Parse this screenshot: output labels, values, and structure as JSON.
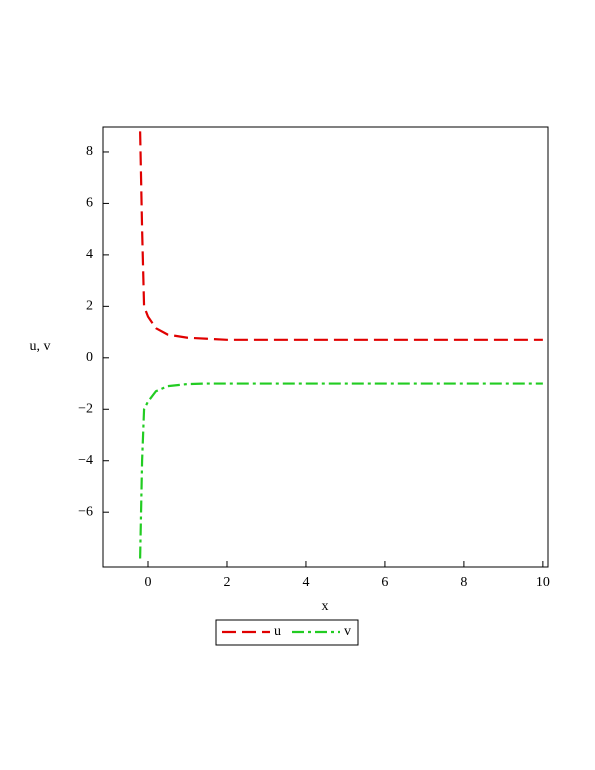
{
  "chart_data": {
    "type": "line",
    "x_label": "x",
    "y_label": "u, v",
    "x": [
      -0.2,
      -0.15,
      -0.1,
      0,
      0.2,
      0.5,
      1,
      1.5,
      2,
      4,
      6,
      8,
      10
    ],
    "series": [
      {
        "name": "u",
        "color": "#e00000",
        "dash": "dash",
        "values": [
          8.8,
          5,
          2,
          1.6,
          1.15,
          0.9,
          0.78,
          0.74,
          0.7,
          0.7,
          0.7,
          0.7,
          0.7
        ]
      },
      {
        "name": "v",
        "color": "#22cc22",
        "dash": "dashdot",
        "values": [
          -7.8,
          -4,
          -2,
          -1.7,
          -1.3,
          -1.1,
          -1.02,
          -1,
          -1,
          -1,
          -1,
          -1,
          -1
        ]
      }
    ],
    "xlim": [
      -1.14,
      10.13
    ],
    "ylim": [
      -8.13,
      8.97
    ],
    "xticks": [
      0,
      2,
      4,
      6,
      8,
      10
    ],
    "yticks": [
      {
        "value": -6,
        "label": "−6"
      },
      {
        "value": -4,
        "label": "−4"
      },
      {
        "value": -2,
        "label": "−2"
      },
      0,
      2,
      4,
      6,
      8
    ]
  }
}
